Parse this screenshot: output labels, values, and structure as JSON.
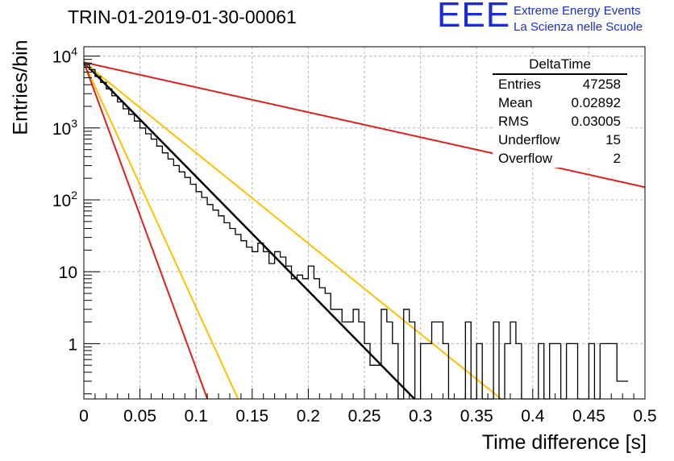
{
  "title": "TRIN-01-2019-01-30-00061",
  "logo": {
    "mark": "EEE",
    "line1": "Extreme Energy Events",
    "line2": "La Scienza nelle Scuole",
    "color": "#1a2cd6"
  },
  "stats": {
    "name": "DeltaTime",
    "rows": [
      {
        "label": "Entries",
        "value": "47258"
      },
      {
        "label": "Mean",
        "value": "0.02892"
      },
      {
        "label": "RMS",
        "value": "0.03005"
      },
      {
        "label": "Underflow",
        "value": "15"
      },
      {
        "label": "Overflow",
        "value": "2"
      }
    ]
  },
  "chart_data": {
    "type": "line",
    "title": "TRIN-01-2019-01-30-00061",
    "xlabel": "Time difference [s]",
    "ylabel": "Entries/bin",
    "xlim": [
      0,
      0.5
    ],
    "ylim": [
      0.17,
      13500
    ],
    "yscale": "log",
    "grid": true,
    "xticks": [
      "0",
      "0.05",
      "0.1",
      "0.15",
      "0.2",
      "0.25",
      "0.3",
      "0.35",
      "0.4",
      "0.45",
      "0.5"
    ],
    "yticks": [
      {
        "value": 1,
        "label": "1"
      },
      {
        "value": 10,
        "label": "10"
      },
      {
        "value": 100,
        "label": "10^2"
      },
      {
        "value": 1000,
        "label": "10^3"
      },
      {
        "value": 10000,
        "label": "10^4"
      }
    ],
    "histogram": {
      "color": "#000000",
      "bin_width": 0.005,
      "values": [
        7600,
        6500,
        5200,
        4300,
        3500,
        2800,
        2300,
        1850,
        1550,
        1250,
        1000,
        830,
        700,
        560,
        450,
        370,
        300,
        245,
        205,
        165,
        130,
        108,
        86,
        72,
        60,
        48,
        40,
        33,
        27,
        22,
        19,
        25,
        19,
        13,
        19,
        16,
        12,
        8,
        9,
        8,
        12,
        8,
        6,
        5,
        3,
        3,
        2,
        2,
        3,
        2,
        1,
        0.5,
        0.5,
        3,
        2,
        1,
        0,
        3,
        2,
        0,
        1,
        1,
        2,
        2,
        1,
        0,
        0,
        0,
        2,
        0,
        1,
        0,
        0,
        2,
        0,
        1,
        2,
        1,
        0,
        0,
        0,
        1,
        0,
        1,
        1,
        0,
        1,
        1,
        0,
        0,
        1,
        0,
        1,
        1,
        1,
        0.3,
        0.3
      ]
    },
    "series": [
      {
        "color": "#000000",
        "width": 2.5,
        "amplitude": 8200,
        "decay": 36.6
      },
      {
        "color": "#ffc000",
        "width": 2,
        "amplitude": 8200,
        "decay": 29.0
      },
      {
        "color": "#ffc000",
        "width": 2,
        "amplitude": 8200,
        "decay": 78.5
      },
      {
        "color": "#e0201c",
        "width": 2,
        "amplitude": 8200,
        "decay": 8.0
      },
      {
        "color": "#e0201c",
        "width": 2,
        "amplitude": 8200,
        "decay": 98.0
      }
    ]
  }
}
